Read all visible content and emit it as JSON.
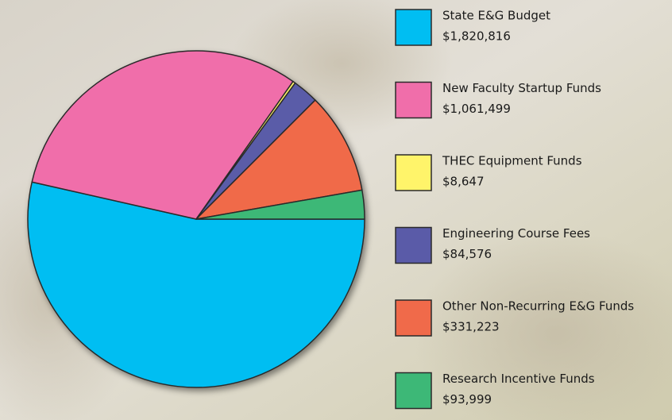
{
  "chart_data": {
    "type": "pie",
    "categories": [
      "State E&G Budget",
      "New Faculty Startup Funds",
      "THEC Equipment Funds",
      "Engineering Course Fees",
      "Other Non-Recurring E&G Funds",
      "Research Incentive Funds"
    ],
    "values": [
      1820816,
      1061499,
      8647,
      84576,
      331223,
      93999
    ],
    "value_labels": [
      "$1,820,816",
      "$1,061,499",
      "$8,647",
      "$84,576",
      "$331,223",
      "$93,999"
    ],
    "colors": [
      "#00bef2",
      "#f06eaa",
      "#fff46a",
      "#5a5ba8",
      "#f06a4a",
      "#3db877"
    ]
  }
}
